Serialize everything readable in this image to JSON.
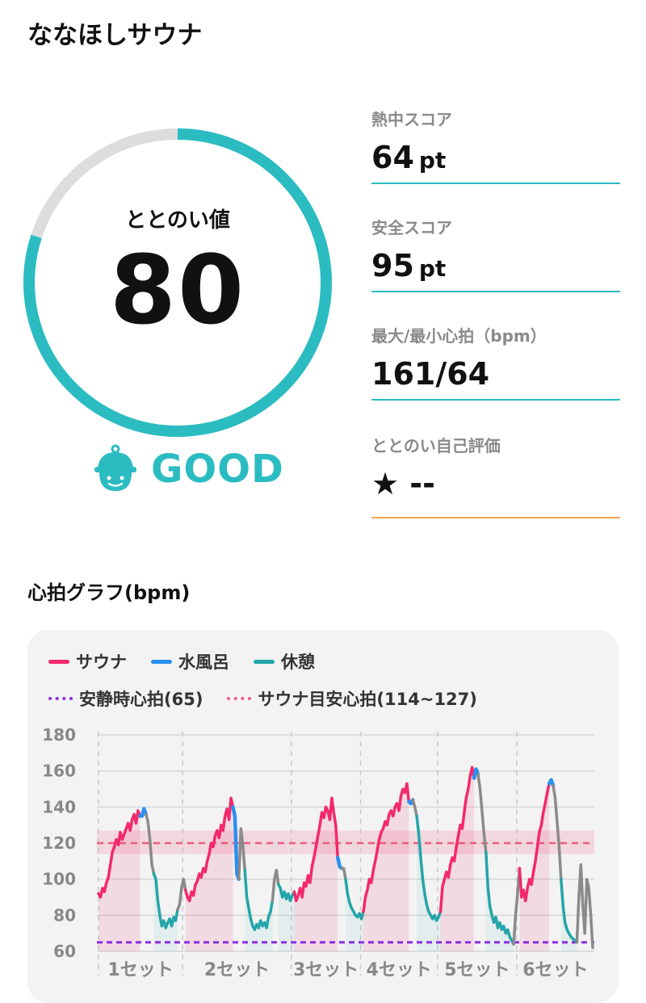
{
  "header": {
    "title": "ななほしサウナ"
  },
  "gauge": {
    "label": "ととのい値",
    "value": "80",
    "max": 100,
    "rating": "GOOD",
    "colors": {
      "accent": "#2bbcc2",
      "track": "#dddddd"
    },
    "icon": "sauna-hat-face-icon"
  },
  "metrics": [
    {
      "label": "熱中スコア",
      "value": "64",
      "unit": "pt"
    },
    {
      "label": "安全スコア",
      "value": "95",
      "unit": "pt"
    },
    {
      "label": "最大/最小心拍（bpm）",
      "value": "161/64",
      "unit": ""
    },
    {
      "label": "ととのい自己評価",
      "value": "★ --",
      "unit": ""
    }
  ],
  "graph_title": "心拍グラフ(bpm)",
  "legend": {
    "sauna": "サウナ",
    "water": "水風呂",
    "rest": "休憩",
    "resting_hr": "安静時心拍(65)",
    "target_hr": "サウナ目安心拍(114~127)"
  },
  "chart_data": {
    "type": "line",
    "ylim": [
      60,
      180
    ],
    "yticks": [
      60,
      80,
      100,
      120,
      140,
      160,
      180
    ],
    "categories": [
      "1セット",
      "2セット",
      "3セット",
      "4セット",
      "5セット",
      "6セット"
    ],
    "resting_hr": 65,
    "target_range": [
      114,
      127
    ],
    "target_line": 120,
    "colors": {
      "sauna": "#f2296b",
      "water": "#2a8ff0",
      "rest": "#23a5a8",
      "other": "#8a8a8a",
      "resting": "#8a2be2",
      "target": "#f05a7e"
    },
    "segments": [
      {
        "type": "sauna",
        "values": [
          92,
          90,
          95,
          93,
          98,
          101,
          108,
          115,
          118,
          122,
          119,
          126,
          122,
          125,
          128,
          131,
          127,
          133,
          136,
          131,
          138,
          135
        ]
      },
      {
        "type": "water",
        "values": [
          135,
          139,
          136
        ]
      },
      {
        "type": "other",
        "values": [
          132,
          122,
          108,
          103
        ]
      },
      {
        "type": "rest",
        "values": [
          100,
          88,
          80,
          74,
          77,
          73,
          76,
          78,
          74,
          79,
          77,
          83
        ]
      },
      {
        "type": "other",
        "values": [
          86,
          95,
          100,
          94
        ]
      },
      {
        "type": "sauna",
        "values": [
          90,
          88,
          93,
          91,
          97,
          99,
          103,
          101,
          106,
          104,
          110,
          114,
          120,
          118,
          124,
          127,
          123,
          130,
          127,
          135,
          139,
          133,
          145,
          140
        ]
      },
      {
        "type": "water",
        "values": [
          135,
          103,
          100
        ]
      },
      {
        "type": "other",
        "values": [
          128,
          119,
          105
        ]
      },
      {
        "type": "rest",
        "values": [
          90,
          84,
          78,
          74,
          72,
          75,
          73,
          77,
          74,
          76,
          73,
          79,
          82,
          88
        ]
      },
      {
        "type": "other",
        "values": [
          100,
          105,
          97
        ]
      },
      {
        "type": "rest",
        "values": [
          95,
          90,
          93,
          89,
          92,
          88,
          91,
          93
        ]
      },
      {
        "type": "sauna",
        "values": [
          88,
          91,
          95,
          90,
          98,
          96,
          102,
          98,
          107,
          112,
          118,
          124,
          130,
          137,
          134,
          140,
          138,
          133,
          145,
          137,
          130,
          112
        ]
      },
      {
        "type": "water",
        "values": [
          107,
          106
        ]
      },
      {
        "type": "other",
        "values": [
          106,
          100
        ]
      },
      {
        "type": "rest",
        "values": [
          92,
          87,
          84,
          82,
          80,
          79,
          81,
          78,
          82
        ]
      },
      {
        "type": "sauna",
        "values": [
          90,
          94,
          100,
          98,
          105,
          110,
          116,
          122,
          126,
          128,
          132,
          130,
          136,
          138,
          135,
          140,
          142,
          138,
          146,
          150,
          148,
          153,
          143
        ]
      },
      {
        "type": "water",
        "values": [
          142,
          144
        ]
      },
      {
        "type": "other",
        "values": [
          140,
          135
        ]
      },
      {
        "type": "rest",
        "values": [
          125,
          112,
          100,
          92,
          86,
          82,
          80,
          78,
          80,
          77,
          79,
          82
        ]
      },
      {
        "type": "sauna",
        "values": [
          96,
          100,
          104,
          101,
          108,
          112,
          110,
          118,
          124,
          130,
          128,
          137,
          145,
          150,
          157,
          162,
          156
        ]
      },
      {
        "type": "water",
        "values": [
          161,
          158
        ]
      },
      {
        "type": "other",
        "values": [
          150,
          138,
          125,
          115
        ]
      },
      {
        "type": "rest",
        "values": [
          95,
          85,
          80,
          76,
          79,
          73,
          76,
          72,
          74,
          70,
          72,
          68,
          66,
          64
        ]
      },
      {
        "type": "other",
        "values": [
          80,
          92,
          106
        ]
      },
      {
        "type": "sauna",
        "values": [
          90,
          94,
          88,
          95,
          100,
          97,
          104,
          110,
          118,
          126,
          130,
          137,
          142,
          148,
          153
        ]
      },
      {
        "type": "water",
        "values": [
          155,
          152
        ]
      },
      {
        "type": "other",
        "values": [
          145,
          132,
          118,
          100
        ]
      },
      {
        "type": "rest",
        "values": [
          85,
          76,
          72,
          70,
          68,
          67,
          66,
          65
        ]
      },
      {
        "type": "other",
        "values": [
          90,
          108,
          85,
          70,
          100,
          95,
          80,
          62
        ]
      }
    ]
  }
}
